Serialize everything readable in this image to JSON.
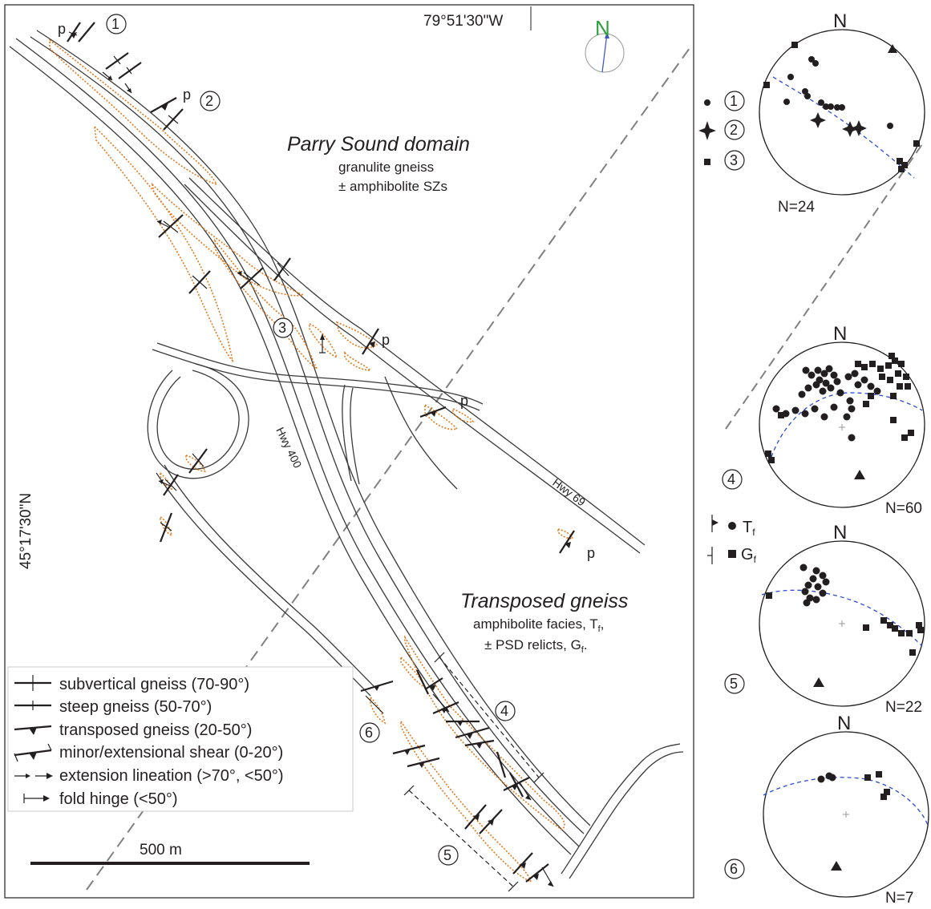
{
  "map": {
    "longitude_label": "79°51'30\"W",
    "latitude_label": "45°17'30\"N",
    "north_label": "N",
    "domain_title": "Parry Sound domain",
    "domain_sub1": "granulite gneiss",
    "domain_sub2": "± amphibolite SZs",
    "transposed_title": "Transposed gneiss",
    "transposed_sub1": "amphibolite facies, T",
    "transposed_sub1_sub": "f",
    "transposed_sub1_tail": ",",
    "transposed_sub2": "± PSD relicts, G",
    "transposed_sub2_sub": "f",
    "transposed_sub2_tail": ".",
    "hwy400": "Hwy 400",
    "hwy69": "Hwy 69",
    "scale_label": "500 m",
    "p_label": "p",
    "site_labels": [
      "1",
      "2",
      "3",
      "4",
      "5",
      "6"
    ]
  },
  "legend": {
    "items": [
      "subvertical gneiss (70-90°)",
      "steep gneiss (50-70°)",
      "transposed gneiss (20-50°)",
      "minor/extensional shear (0-20°)",
      "extension lineation (>70°, <50°)",
      "fold hinge (<50°)"
    ]
  },
  "stereonets": {
    "north_label": "N",
    "net1_count": "N=24",
    "net2_count": "N=60",
    "net3_count": "N=22",
    "net4_count": "N=7",
    "net1_keys": [
      "1",
      "2",
      "3"
    ],
    "tf_label": "T",
    "gf_label": "G",
    "sub_f": "f",
    "site_4": "4",
    "site_5": "5",
    "site_6": "6"
  },
  "colors": {
    "outcrop": "#e07a1f",
    "great_circle": "#2b4bd6",
    "north_arrow": "#2e9e3e",
    "ink": "#231f20"
  }
}
